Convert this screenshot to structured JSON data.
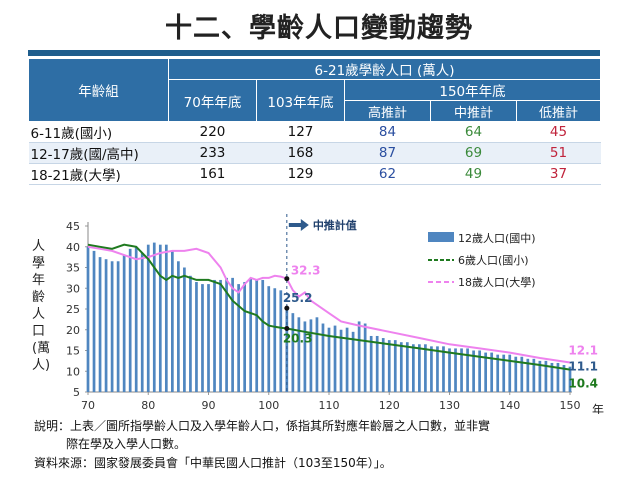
{
  "title": "十二、學齡人口變動趨勢",
  "table": {
    "group_header": "年齡組",
    "top_header": "6-21歲學齡人口 (萬人)",
    "col_70": "70年年底",
    "col_103": "103年年底",
    "col_150": "150年年底",
    "col_high": "高推計",
    "col_mid": "中推計",
    "col_low": "低推計",
    "rows": [
      {
        "group": "6-11歲(國小)",
        "y70": "220",
        "y103": "127",
        "high": "84",
        "mid": "64",
        "low": "45"
      },
      {
        "group": "12-17歲(國/高中)",
        "y70": "233",
        "y103": "168",
        "high": "87",
        "mid": "69",
        "low": "51"
      },
      {
        "group": "18-21歲(大學)",
        "y70": "161",
        "y103": "129",
        "high": "62",
        "mid": "49",
        "low": "37"
      }
    ]
  },
  "chart_data": {
    "type": "bar",
    "ylabel": "人學年齡人口(萬人)",
    "xlabel_unit": "年",
    "xlim": [
      70,
      150
    ],
    "ylim": [
      5,
      45
    ],
    "yticks": [
      5,
      10,
      15,
      20,
      25,
      30,
      35,
      40,
      45
    ],
    "xticks": [
      70,
      80,
      90,
      100,
      110,
      120,
      130,
      140,
      150
    ],
    "marker_label": "中推計值",
    "marker_x": 103,
    "colors": {
      "bars": "#4f86c0",
      "line6": "#1f7a1f",
      "line18": "#ee82ee",
      "marker": "#2e5a8c"
    },
    "series": [
      {
        "name": "12歲人口(國中)",
        "type": "bar",
        "x": [
          70,
          71,
          72,
          73,
          74,
          75,
          76,
          77,
          78,
          79,
          80,
          81,
          82,
          83,
          84,
          85,
          86,
          87,
          88,
          89,
          90,
          91,
          92,
          93,
          94,
          95,
          96,
          97,
          98,
          99,
          100,
          101,
          102,
          103,
          104,
          105,
          106,
          107,
          108,
          109,
          110,
          111,
          112,
          113,
          114,
          115,
          116,
          117,
          118,
          119,
          120,
          121,
          122,
          123,
          124,
          125,
          126,
          127,
          128,
          129,
          130,
          131,
          132,
          133,
          134,
          135,
          136,
          137,
          138,
          139,
          140,
          141,
          142,
          143,
          144,
          145,
          146,
          147,
          148,
          149,
          150
        ],
        "values": [
          40,
          39,
          37.5,
          37,
          36.5,
          36.5,
          38,
          39.5,
          40,
          38.5,
          40.5,
          41,
          40.5,
          40.5,
          39,
          36.5,
          35,
          33,
          31.5,
          31,
          31,
          32,
          32,
          32.5,
          32.5,
          31,
          31.5,
          32.5,
          32,
          32,
          30.5,
          30,
          29.5,
          25.2,
          24,
          23,
          22,
          22.5,
          23,
          21.5,
          20.5,
          21,
          20,
          20.5,
          19.5,
          22,
          21.5,
          18.5,
          18.5,
          18,
          17.5,
          17.5,
          17,
          17,
          16.5,
          16.5,
          16.5,
          16,
          16,
          16,
          15.5,
          15.5,
          15.5,
          15.5,
          15,
          15,
          14.5,
          14.5,
          14,
          14,
          14,
          13.5,
          13.5,
          13,
          13,
          12.5,
          12.5,
          12,
          12,
          11.5,
          11.1
        ]
      },
      {
        "name": "6歲人口(國小)",
        "type": "line",
        "x": [
          70,
          72,
          74,
          76,
          78,
          80,
          81,
          82,
          83,
          84,
          85,
          86,
          88,
          90,
          92,
          94,
          96,
          98,
          99,
          100,
          101,
          102,
          103,
          106,
          110,
          115,
          120,
          125,
          130,
          135,
          140,
          145,
          150
        ],
        "values": [
          40.5,
          40,
          39.5,
          40.5,
          40,
          37,
          35,
          33,
          32,
          33,
          32.5,
          33,
          32,
          32,
          31,
          27,
          24.5,
          23.5,
          22,
          21,
          20.7,
          20.5,
          20.3,
          19.5,
          18.5,
          17.5,
          16.5,
          15.5,
          14.5,
          13.5,
          12.5,
          11.5,
          10.4
        ]
      },
      {
        "name": "18歲人口(大學)",
        "type": "line",
        "x": [
          70,
          72,
          74,
          76,
          78,
          80,
          82,
          84,
          86,
          88,
          90,
          92,
          93,
          94,
          95,
          96,
          97,
          98,
          99,
          100,
          101,
          102,
          103,
          104,
          105,
          106,
          107,
          108,
          110,
          112,
          115,
          120,
          125,
          130,
          135,
          140,
          145,
          150
        ],
        "values": [
          40,
          39.5,
          39,
          38,
          37,
          37.5,
          38.5,
          39,
          39,
          39.5,
          38.5,
          35,
          32,
          30,
          29,
          31,
          32.5,
          32,
          32.5,
          32.5,
          33,
          32.8,
          32.3,
          29.5,
          28,
          29,
          27,
          26,
          24,
          22,
          21,
          19.5,
          18,
          16.5,
          15.5,
          14.5,
          13.2,
          12.1
        ]
      }
    ],
    "annotations": [
      {
        "text": "32.3",
        "x": 103,
        "y": 32.3,
        "color": "#ee82ee"
      },
      {
        "text": "25.2",
        "x": 103,
        "y": 25.2,
        "color": "#2e5a8c"
      },
      {
        "text": "20.3",
        "x": 103,
        "y": 20.3,
        "color": "#1f7a1f"
      },
      {
        "text": "12.1",
        "x": 150,
        "y": 12.1,
        "color": "#ee82ee"
      },
      {
        "text": "11.1",
        "x": 150,
        "y": 11.1,
        "color": "#2e5a8c"
      },
      {
        "text": "10.4",
        "x": 150,
        "y": 10.4,
        "color": "#1f7a1f"
      }
    ]
  },
  "notes": {
    "line1": "說明：上表／圖所指學齡人口及入學年齡人口，係指其所對應年齡層之人口數，並非實",
    "line2": "際在學及入學人口數。",
    "line3": "資料來源：國家發展委員會「中華民國人口推計（103至150年）」。"
  }
}
